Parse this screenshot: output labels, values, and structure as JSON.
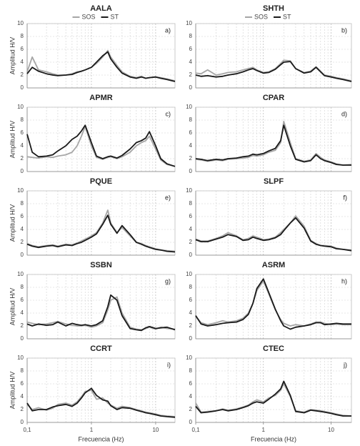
{
  "chart_data": [
    {
      "type": "line",
      "title": "AALA",
      "panel_label": "a)",
      "y_label": "Amplitud H/V",
      "legend": "top",
      "log_x": true,
      "grid": true,
      "xlim": [
        0.1,
        20
      ],
      "ylim": [
        0,
        10
      ],
      "yticks": [
        0,
        2,
        4,
        6,
        8,
        10
      ],
      "x": [
        0.1,
        0.12,
        0.15,
        0.2,
        0.25,
        0.3,
        0.4,
        0.5,
        0.6,
        0.7,
        0.8,
        1,
        1.2,
        1.5,
        1.8,
        2,
        2.5,
        3,
        4,
        5,
        6,
        7,
        8,
        10,
        12,
        15,
        20
      ],
      "series": [
        {
          "name": "SOS",
          "color": "#a6a6a6",
          "values": [
            2.5,
            4.8,
            2.8,
            2.5,
            2.2,
            2,
            2,
            2.2,
            2.5,
            2.6,
            2.8,
            3.2,
            3.8,
            4.8,
            5.8,
            4.8,
            3.5,
            2.5,
            1.8,
            1.6,
            1.8,
            1.5,
            1.6,
            1.7,
            1.6,
            1.4,
            1.1
          ]
        },
        {
          "name": "ST",
          "color": "#1a1a1a",
          "values": [
            2.2,
            3.2,
            2.6,
            2.2,
            2,
            1.9,
            2,
            2.1,
            2.4,
            2.6,
            2.8,
            3.2,
            4,
            5,
            5.6,
            4.5,
            3.2,
            2.3,
            1.7,
            1.5,
            1.7,
            1.5,
            1.6,
            1.7,
            1.5,
            1.3,
            1.0
          ]
        }
      ]
    },
    {
      "type": "line",
      "title": "SHTH",
      "panel_label": "b)",
      "legend": "top",
      "log_x": true,
      "grid": true,
      "xlim": [
        0.1,
        20
      ],
      "ylim": [
        0,
        10
      ],
      "yticks": [
        0,
        2,
        4,
        6,
        8,
        10
      ],
      "x": [
        0.1,
        0.12,
        0.15,
        0.2,
        0.25,
        0.3,
        0.4,
        0.5,
        0.6,
        0.7,
        0.8,
        1,
        1.2,
        1.5,
        1.8,
        2,
        2.5,
        3,
        4,
        5,
        6,
        7,
        8,
        10,
        12,
        15,
        20
      ],
      "series": [
        {
          "name": "SOS",
          "color": "#a6a6a6",
          "values": [
            2.3,
            2.2,
            2.8,
            2.0,
            2.2,
            2.4,
            2.5,
            2.8,
            3.0,
            3.2,
            2.8,
            2.4,
            2.5,
            3.0,
            3.8,
            4.3,
            4.2,
            3.0,
            2.4,
            2.6,
            3.3,
            2.6,
            2.0,
            1.8,
            1.6,
            1.4,
            1.1
          ]
        },
        {
          "name": "ST",
          "color": "#1a1a1a",
          "values": [
            2.0,
            1.8,
            1.9,
            1.7,
            1.8,
            2.0,
            2.2,
            2.5,
            2.8,
            3.0,
            2.7,
            2.3,
            2.4,
            2.9,
            3.6,
            4.0,
            4.1,
            3.0,
            2.3,
            2.5,
            3.2,
            2.5,
            1.9,
            1.7,
            1.5,
            1.3,
            1.0
          ]
        }
      ]
    },
    {
      "type": "line",
      "title": "APMR",
      "panel_label": "c)",
      "y_label": "Amplitud H/V",
      "log_x": true,
      "grid": true,
      "xlim": [
        0.1,
        20
      ],
      "ylim": [
        0,
        10
      ],
      "yticks": [
        0,
        2,
        4,
        6,
        8,
        10
      ],
      "x": [
        0.1,
        0.12,
        0.15,
        0.2,
        0.25,
        0.3,
        0.4,
        0.5,
        0.6,
        0.7,
        0.8,
        1,
        1.2,
        1.5,
        1.8,
        2,
        2.5,
        3,
        4,
        5,
        6,
        7,
        8,
        10,
        12,
        15,
        20
      ],
      "series": [
        {
          "color": "#a6a6a6",
          "values": [
            2.3,
            2.2,
            2.1,
            2.3,
            2.2,
            2.4,
            2.6,
            3.0,
            4.0,
            5.5,
            7.0,
            4.0,
            2.2,
            1.9,
            2.2,
            2.3,
            2.0,
            2.3,
            3.0,
            4.0,
            4.5,
            4.8,
            5.5,
            3.5,
            1.8,
            1.1,
            0.8
          ]
        },
        {
          "color": "#1a1a1a",
          "values": [
            5.8,
            3.0,
            2.3,
            2.4,
            2.6,
            3.2,
            4.0,
            5.0,
            5.5,
            6.3,
            7.2,
            4.5,
            2.4,
            2.0,
            2.3,
            2.4,
            2.1,
            2.5,
            3.5,
            4.5,
            4.8,
            5.2,
            6.2,
            4.0,
            2.0,
            1.2,
            0.8
          ]
        }
      ]
    },
    {
      "type": "line",
      "title": "CPAR",
      "panel_label": "d)",
      "log_x": true,
      "grid": true,
      "xlim": [
        0.1,
        20
      ],
      "ylim": [
        0,
        10
      ],
      "yticks": [
        0,
        2,
        4,
        6,
        8,
        10
      ],
      "x": [
        0.1,
        0.12,
        0.15,
        0.2,
        0.25,
        0.3,
        0.4,
        0.5,
        0.6,
        0.7,
        0.8,
        1,
        1.2,
        1.5,
        1.8,
        2,
        2.5,
        3,
        4,
        5,
        6,
        7,
        8,
        10,
        12,
        15,
        20
      ],
      "series": [
        {
          "color": "#a6a6a6",
          "values": [
            1.9,
            1.8,
            1.6,
            1.8,
            1.7,
            1.9,
            2.0,
            2.1,
            2.2,
            2.5,
            2.4,
            2.6,
            3.0,
            3.3,
            4.5,
            7.8,
            4.5,
            2.0,
            1.6,
            1.8,
            2.8,
            2.2,
            1.8,
            1.5,
            1.2,
            1.0,
            1.1
          ]
        },
        {
          "color": "#1a1a1a",
          "values": [
            2.0,
            1.9,
            1.7,
            1.9,
            1.8,
            2.0,
            2.1,
            2.3,
            2.4,
            2.7,
            2.6,
            2.8,
            3.2,
            3.6,
            4.8,
            7.2,
            4.0,
            1.9,
            1.5,
            1.7,
            2.6,
            2.0,
            1.7,
            1.4,
            1.1,
            1.0,
            1.0
          ]
        }
      ]
    },
    {
      "type": "line",
      "title": "PQUE",
      "panel_label": "e)",
      "y_label": "Amplitud H/V",
      "log_x": true,
      "grid": true,
      "xlim": [
        0.1,
        20
      ],
      "ylim": [
        0,
        10
      ],
      "yticks": [
        0,
        2,
        4,
        6,
        8,
        10
      ],
      "x": [
        0.1,
        0.12,
        0.15,
        0.2,
        0.25,
        0.3,
        0.4,
        0.5,
        0.6,
        0.7,
        0.8,
        1,
        1.2,
        1.5,
        1.8,
        2,
        2.5,
        3,
        4,
        5,
        6,
        7,
        8,
        10,
        12,
        15,
        20
      ],
      "series": [
        {
          "color": "#a6a6a6",
          "values": [
            1.8,
            1.5,
            1.3,
            1.5,
            1.6,
            1.4,
            1.7,
            1.6,
            1.9,
            2.2,
            2.5,
            3.0,
            3.5,
            5.0,
            7.0,
            5.0,
            3.5,
            4.3,
            3.0,
            2.0,
            1.8,
            1.5,
            1.3,
            1.0,
            0.8,
            0.7,
            0.6
          ]
        },
        {
          "color": "#1a1a1a",
          "values": [
            1.7,
            1.4,
            1.2,
            1.4,
            1.5,
            1.3,
            1.6,
            1.5,
            1.8,
            2.0,
            2.3,
            2.8,
            3.3,
            4.8,
            6.2,
            4.8,
            3.4,
            4.6,
            3.2,
            2.0,
            1.7,
            1.4,
            1.2,
            0.9,
            0.8,
            0.6,
            0.5
          ]
        }
      ]
    },
    {
      "type": "line",
      "title": "SLPF",
      "panel_label": "f)",
      "log_x": true,
      "grid": true,
      "xlim": [
        0.1,
        20
      ],
      "ylim": [
        0,
        10
      ],
      "yticks": [
        0,
        2,
        4,
        6,
        8,
        10
      ],
      "x": [
        0.1,
        0.12,
        0.15,
        0.2,
        0.25,
        0.3,
        0.4,
        0.5,
        0.6,
        0.7,
        0.8,
        1,
        1.2,
        1.5,
        1.8,
        2,
        2.5,
        3,
        4,
        5,
        6,
        7,
        8,
        10,
        12,
        15,
        20
      ],
      "series": [
        {
          "color": "#a6a6a6",
          "values": [
            2.5,
            2.2,
            2.2,
            2.6,
            3.0,
            3.5,
            3.0,
            2.4,
            2.6,
            3.0,
            2.8,
            2.4,
            2.5,
            2.8,
            3.5,
            4.0,
            5.0,
            6.1,
            4.5,
            2.3,
            1.8,
            1.5,
            1.5,
            1.4,
            1.1,
            0.9,
            0.8
          ]
        },
        {
          "color": "#1a1a1a",
          "values": [
            2.4,
            2.1,
            2.1,
            2.5,
            2.8,
            3.2,
            2.9,
            2.3,
            2.4,
            2.8,
            2.6,
            2.3,
            2.4,
            2.7,
            3.2,
            3.8,
            5.0,
            5.8,
            4.2,
            2.2,
            1.7,
            1.5,
            1.4,
            1.3,
            1.0,
            0.9,
            0.7
          ]
        }
      ]
    },
    {
      "type": "line",
      "title": "SSBN",
      "panel_label": "g)",
      "y_label": "Amplitud H/V",
      "log_x": true,
      "grid": true,
      "xlim": [
        0.1,
        20
      ],
      "ylim": [
        0,
        10
      ],
      "yticks": [
        0,
        2,
        4,
        6,
        8,
        10
      ],
      "x": [
        0.1,
        0.12,
        0.15,
        0.2,
        0.25,
        0.3,
        0.4,
        0.5,
        0.6,
        0.7,
        0.8,
        1,
        1.2,
        1.5,
        1.8,
        2,
        2.5,
        3,
        4,
        5,
        6,
        7,
        8,
        10,
        12,
        15,
        20
      ],
      "series": [
        {
          "color": "#a6a6a6",
          "values": [
            2.6,
            2.4,
            2.2,
            2.3,
            2.5,
            2.7,
            2.3,
            2.1,
            2.0,
            2.0,
            2.1,
            1.8,
            2.0,
            2.5,
            4.5,
            6.0,
            6.5,
            4.0,
            1.8,
            1.5,
            1.4,
            1.6,
            1.8,
            1.5,
            1.8,
            1.6,
            1.5
          ]
        },
        {
          "color": "#1a1a1a",
          "values": [
            2.3,
            2.0,
            2.3,
            2.1,
            2.2,
            2.6,
            2.0,
            2.4,
            2.2,
            2.1,
            2.2,
            2.0,
            2.2,
            2.8,
            5.0,
            6.8,
            6.0,
            3.6,
            1.6,
            1.4,
            1.3,
            1.7,
            1.9,
            1.6,
            1.7,
            1.8,
            1.4
          ]
        }
      ]
    },
    {
      "type": "line",
      "title": "ASRM",
      "panel_label": "h)",
      "log_x": true,
      "grid": true,
      "xlim": [
        0.1,
        20
      ],
      "ylim": [
        0,
        10
      ],
      "yticks": [
        0,
        2,
        4,
        6,
        8,
        10
      ],
      "x": [
        0.1,
        0.12,
        0.15,
        0.2,
        0.25,
        0.3,
        0.4,
        0.5,
        0.6,
        0.7,
        0.8,
        1,
        1.2,
        1.5,
        1.8,
        2,
        2.5,
        3,
        4,
        5,
        6,
        7,
        8,
        10,
        12,
        15,
        20
      ],
      "series": [
        {
          "color": "#a6a6a6",
          "values": [
            3.5,
            2.5,
            2.2,
            2.5,
            2.8,
            2.6,
            2.8,
            3.2,
            4.0,
            5.5,
            7.5,
            9.0,
            7.0,
            4.5,
            3.0,
            2.4,
            2.0,
            2.2,
            2.0,
            2.3,
            2.6,
            2.6,
            2.4,
            2.2,
            2.3,
            2.2,
            2.2
          ]
        },
        {
          "color": "#1a1a1a",
          "values": [
            3.6,
            2.3,
            2.0,
            2.2,
            2.4,
            2.5,
            2.6,
            3.0,
            3.8,
            5.5,
            7.8,
            9.3,
            7.2,
            4.6,
            2.8,
            2.0,
            1.5,
            1.8,
            2.0,
            2.2,
            2.5,
            2.5,
            2.2,
            2.3,
            2.4,
            2.3,
            2.3
          ]
        }
      ]
    },
    {
      "type": "line",
      "title": "CCRT",
      "panel_label": "i)",
      "y_label": "Amplitud H/V",
      "x_label": "Frecuencia (Hz)",
      "log_x": true,
      "grid": true,
      "xlim": [
        0.1,
        20
      ],
      "ylim": [
        0,
        10
      ],
      "yticks": [
        0,
        2,
        4,
        6,
        8,
        10
      ],
      "xticks": [
        {
          "value": 0.1,
          "label": "0,1"
        },
        1,
        10
      ],
      "x": [
        0.1,
        0.12,
        0.15,
        0.2,
        0.25,
        0.3,
        0.4,
        0.5,
        0.6,
        0.7,
        0.8,
        1,
        1.2,
        1.5,
        1.8,
        2,
        2.5,
        3,
        4,
        5,
        6,
        7,
        8,
        10,
        12,
        15,
        20
      ],
      "series": [
        {
          "color": "#a6a6a6",
          "values": [
            2.8,
            2.0,
            2.3,
            1.9,
            2.2,
            2.8,
            3.0,
            2.7,
            3.2,
            4.0,
            4.8,
            5.0,
            3.6,
            3.8,
            3.0,
            2.7,
            2.2,
            2.5,
            2.3,
            2.0,
            1.8,
            1.6,
            1.5,
            1.3,
            1.1,
            1.0,
            0.9
          ]
        },
        {
          "color": "#1a1a1a",
          "values": [
            3.0,
            1.8,
            2.0,
            2.0,
            2.4,
            2.6,
            2.8,
            2.5,
            3.0,
            3.8,
            4.6,
            5.3,
            4.2,
            3.5,
            3.3,
            2.6,
            2.0,
            2.3,
            2.2,
            1.9,
            1.7,
            1.5,
            1.4,
            1.2,
            1.0,
            0.9,
            0.8
          ]
        }
      ]
    },
    {
      "type": "line",
      "title": "CTEC",
      "panel_label": "j)",
      "x_label": "Frecuencia (Hz)",
      "log_x": true,
      "grid": true,
      "xlim": [
        0.1,
        20
      ],
      "ylim": [
        0,
        10
      ],
      "yticks": [
        0,
        2,
        4,
        6,
        8,
        10
      ],
      "xticks": [
        {
          "value": 0.1,
          "label": "0,1"
        },
        1,
        10
      ],
      "x": [
        0.1,
        0.12,
        0.15,
        0.2,
        0.25,
        0.3,
        0.4,
        0.5,
        0.6,
        0.7,
        0.8,
        1,
        1.2,
        1.5,
        1.8,
        2,
        2.5,
        3,
        4,
        5,
        6,
        7,
        8,
        10,
        12,
        15,
        20
      ],
      "series": [
        {
          "color": "#a6a6a6",
          "values": [
            3.0,
            1.6,
            1.7,
            1.8,
            2.1,
            1.9,
            2.1,
            2.4,
            2.7,
            3.2,
            3.5,
            3.2,
            3.8,
            4.2,
            5.0,
            6.0,
            4.0,
            1.8,
            1.6,
            2.0,
            1.9,
            1.8,
            1.7,
            1.5,
            1.3,
            1.1,
            1.0
          ]
        },
        {
          "color": "#1a1a1a",
          "values": [
            2.5,
            1.5,
            1.6,
            1.8,
            2.0,
            1.8,
            2.0,
            2.3,
            2.6,
            3.0,
            3.2,
            3.0,
            3.6,
            4.4,
            5.2,
            6.4,
            4.2,
            1.7,
            1.5,
            1.9,
            1.8,
            1.7,
            1.6,
            1.4,
            1.2,
            1.0,
            1.0
          ]
        }
      ]
    }
  ]
}
